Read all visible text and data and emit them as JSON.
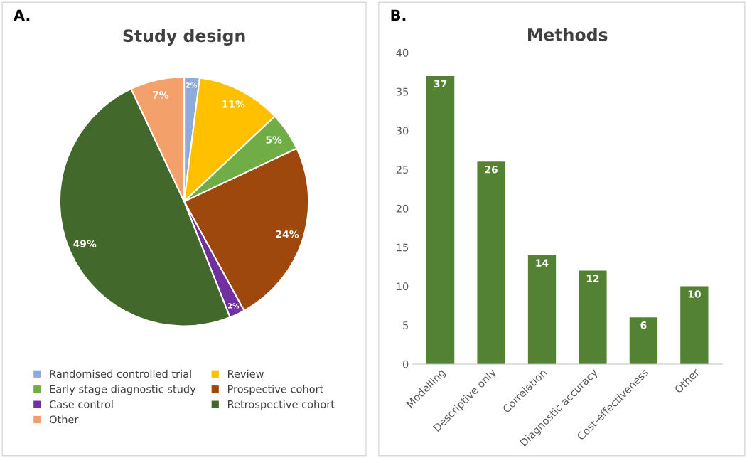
{
  "chart_data": [
    {
      "type": "pie",
      "title": "Study design",
      "annotations": [
        "A."
      ],
      "categories": [
        "Randomised controlled trial",
        "Review",
        "Early stage diagnostic study",
        "Prospective cohort",
        "Case control",
        "Retrospective cohort",
        "Other"
      ],
      "values": [
        2,
        11,
        5,
        24,
        2,
        49,
        7
      ],
      "value_labels": [
        "2%",
        "11%",
        "5%",
        "24%",
        "2%",
        "49%",
        "7%"
      ],
      "colors": [
        "#8faadc",
        "#ffc000",
        "#70ad47",
        "#9e480e",
        "#7030a0",
        "#43682b",
        "#f4a06a"
      ],
      "legend": "bottom"
    },
    {
      "type": "bar",
      "title": "Methods",
      "annotations": [
        "B."
      ],
      "categories": [
        "Modelling",
        "Descriptive only",
        "Correlation",
        "Diagnostic accuracy",
        "Cost-effectiveness",
        "Other"
      ],
      "values": [
        37,
        26,
        14,
        12,
        6,
        10
      ],
      "color": "#548235",
      "ylim": [
        0,
        40
      ],
      "yticks": [
        0,
        5,
        10,
        15,
        20,
        25,
        30,
        35,
        40
      ],
      "data_labels": true,
      "grid": false
    }
  ]
}
